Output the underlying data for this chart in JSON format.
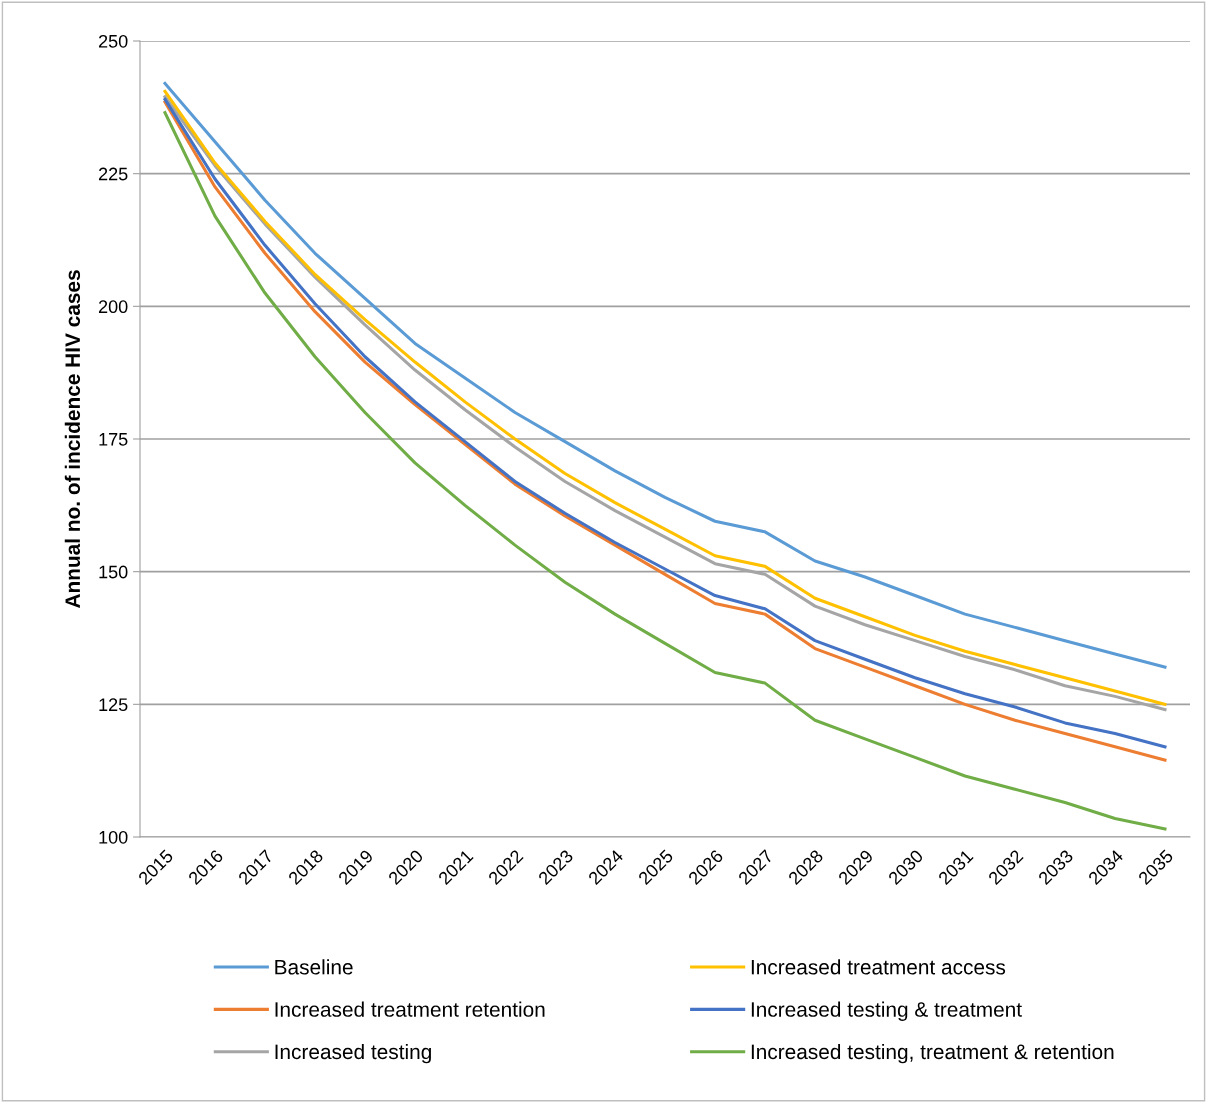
{
  "chart_data": {
    "type": "line",
    "ylabel": "Annual no. of incidence HIV cases",
    "categories": [
      "2015",
      "2016",
      "2017",
      "2018",
      "2019",
      "2020",
      "2021",
      "2022",
      "2023",
      "2024",
      "2025",
      "2026",
      "2027",
      "2028",
      "2029",
      "2030",
      "2031",
      "2032",
      "2033",
      "2034",
      "2035"
    ],
    "series": [
      {
        "name": "Baseline",
        "color": "#5b9bd5",
        "values": [
          242,
          231,
          220,
          210,
          201.5,
          193,
          186.5,
          180,
          174.5,
          169,
          164,
          159.5,
          157.5,
          152,
          149,
          145.5,
          142,
          139.5,
          137,
          134.5,
          132
        ]
      },
      {
        "name": "Increased treatment retention",
        "color": "#ed7d31",
        "values": [
          238.5,
          222.5,
          210,
          199,
          189.5,
          181.5,
          174,
          166.5,
          160.5,
          155,
          149.5,
          144,
          142,
          135.5,
          132,
          128.5,
          125,
          122,
          119.5,
          117,
          114.5
        ]
      },
      {
        "name": "Increased testing",
        "color": "#a5a5a5",
        "values": [
          239.5,
          226.5,
          215.5,
          205.5,
          196.5,
          188,
          180.5,
          173.5,
          167,
          161.5,
          156.5,
          151.5,
          149.5,
          143.5,
          140,
          137,
          134,
          131.5,
          128.5,
          126.5,
          124
        ]
      },
      {
        "name": "Increased treatment access",
        "color": "#ffc000",
        "values": [
          240.5,
          227,
          216,
          206,
          197.5,
          189.5,
          182,
          175,
          168.5,
          163,
          158,
          153,
          151,
          145,
          141.5,
          138,
          135,
          132.5,
          130,
          127.5,
          125
        ]
      },
      {
        "name": "Increased testing & treatment",
        "color": "#4472c4",
        "values": [
          239,
          224,
          211.5,
          200.5,
          190.5,
          182,
          174.5,
          167,
          161,
          155.5,
          150.5,
          145.5,
          143,
          137,
          133.5,
          130,
          127,
          124.5,
          121.5,
          119.5,
          117
        ]
      },
      {
        "name": "Increased testing, treatment & retention",
        "color": "#70ad47",
        "values": [
          236.5,
          217,
          202.5,
          190.5,
          180,
          170.5,
          162.5,
          155,
          148,
          142,
          136.5,
          131,
          129,
          122,
          118.5,
          115,
          111.5,
          109,
          106.5,
          103.5,
          101.5
        ]
      }
    ],
    "ylim": [
      100,
      250
    ],
    "yticks": [
      100,
      125,
      150,
      175,
      200,
      225,
      250
    ],
    "grid": "y",
    "legend": "bottom",
    "marker": "none",
    "line_style": "solid"
  }
}
